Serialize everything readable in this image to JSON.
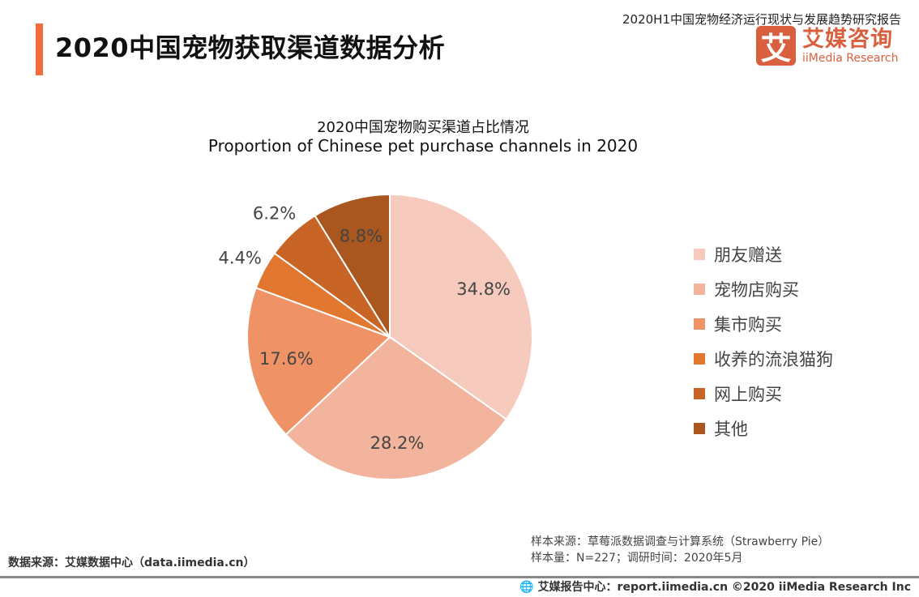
{
  "header": {
    "title": "2020中国宠物获取渠道数据分析",
    "report_name": "2020H1中国宠物经济运行现状与发展趋势研究报告",
    "logo_cn": "艾媒咨询",
    "logo_en": "iiMedia Research",
    "logo_mark": "艾"
  },
  "chart_data": {
    "type": "pie",
    "title": "2020中国宠物购买渠道占比情况",
    "subtitle": "Proportion of Chinese pet purchase channels in 2020",
    "categories": [
      "朋友赠送",
      "宠物店购买",
      "集市购买",
      "收养的流浪猫狗",
      "网上购买",
      "其他"
    ],
    "values": [
      34.8,
      28.2,
      17.6,
      4.4,
      6.2,
      8.8
    ],
    "labels": [
      "34.8%",
      "28.2%",
      "17.6%",
      "4.4%",
      "6.2%",
      "8.8%"
    ],
    "colors": [
      "#F6CBBE",
      "#F2B49C",
      "#EF9265",
      "#E2782F",
      "#C96427",
      "#A9561F"
    ],
    "start": "12 o'clock",
    "direction": "clockwise",
    "legend_position": "right"
  },
  "footer": {
    "source": "数据来源：艾媒数据中心（data.iimedia.cn）",
    "sample_source": "样本来源：草莓派数据调查与计算系统（Strawberry Pie）",
    "sample_size": "样本量：N=227；调研时间：2020年5月",
    "copyright": "艾媒报告中心：report.iimedia.cn   ©2020  iiMedia Research  Inc",
    "globe_icon": "globe-icon"
  }
}
